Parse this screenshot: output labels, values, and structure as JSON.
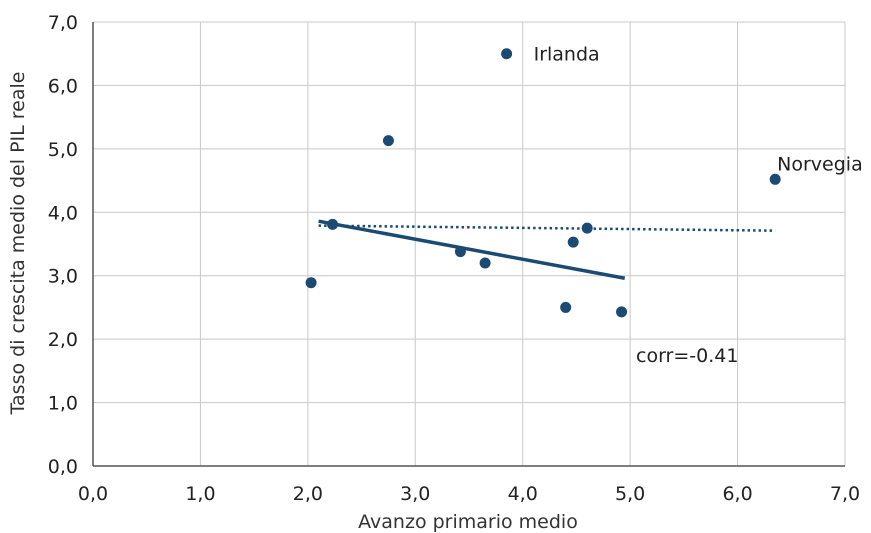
{
  "chart_data": {
    "type": "scatter",
    "xlabel": "Avanzo primario medio",
    "ylabel": "Tasso di crescita medio del PIL reale",
    "xlim": [
      0,
      7
    ],
    "ylim": [
      0,
      7
    ],
    "x_ticks": [
      "0,0",
      "1,0",
      "2,0",
      "3,0",
      "4,0",
      "5,0",
      "6,0",
      "7,0"
    ],
    "y_ticks": [
      "0,0",
      "1,0",
      "2,0",
      "3,0",
      "4,0",
      "5,0",
      "6,0",
      "7,0"
    ],
    "grid": true,
    "points": [
      {
        "x": 3.85,
        "y": 6.5,
        "label": "Irlanda"
      },
      {
        "x": 6.35,
        "y": 4.52,
        "label": "Norvegia"
      },
      {
        "x": 2.75,
        "y": 5.13
      },
      {
        "x": 2.03,
        "y": 2.89
      },
      {
        "x": 2.23,
        "y": 3.81
      },
      {
        "x": 3.42,
        "y": 3.38
      },
      {
        "x": 3.65,
        "y": 3.2
      },
      {
        "x": 4.47,
        "y": 3.53
      },
      {
        "x": 4.6,
        "y": 3.75
      },
      {
        "x": 4.4,
        "y": 2.5
      },
      {
        "x": 4.92,
        "y": 2.43
      }
    ],
    "fit_line": {
      "x": [
        2.1,
        4.95
      ],
      "y": [
        3.86,
        2.96
      ]
    },
    "fit_line_all": {
      "x": [
        2.1,
        6.35
      ],
      "y": [
        3.79,
        3.71
      ]
    },
    "annotation": "corr=-0.41",
    "colors": {
      "points": "#1b4a72",
      "grid": "#c8c8c8",
      "axis": "#555555"
    }
  }
}
